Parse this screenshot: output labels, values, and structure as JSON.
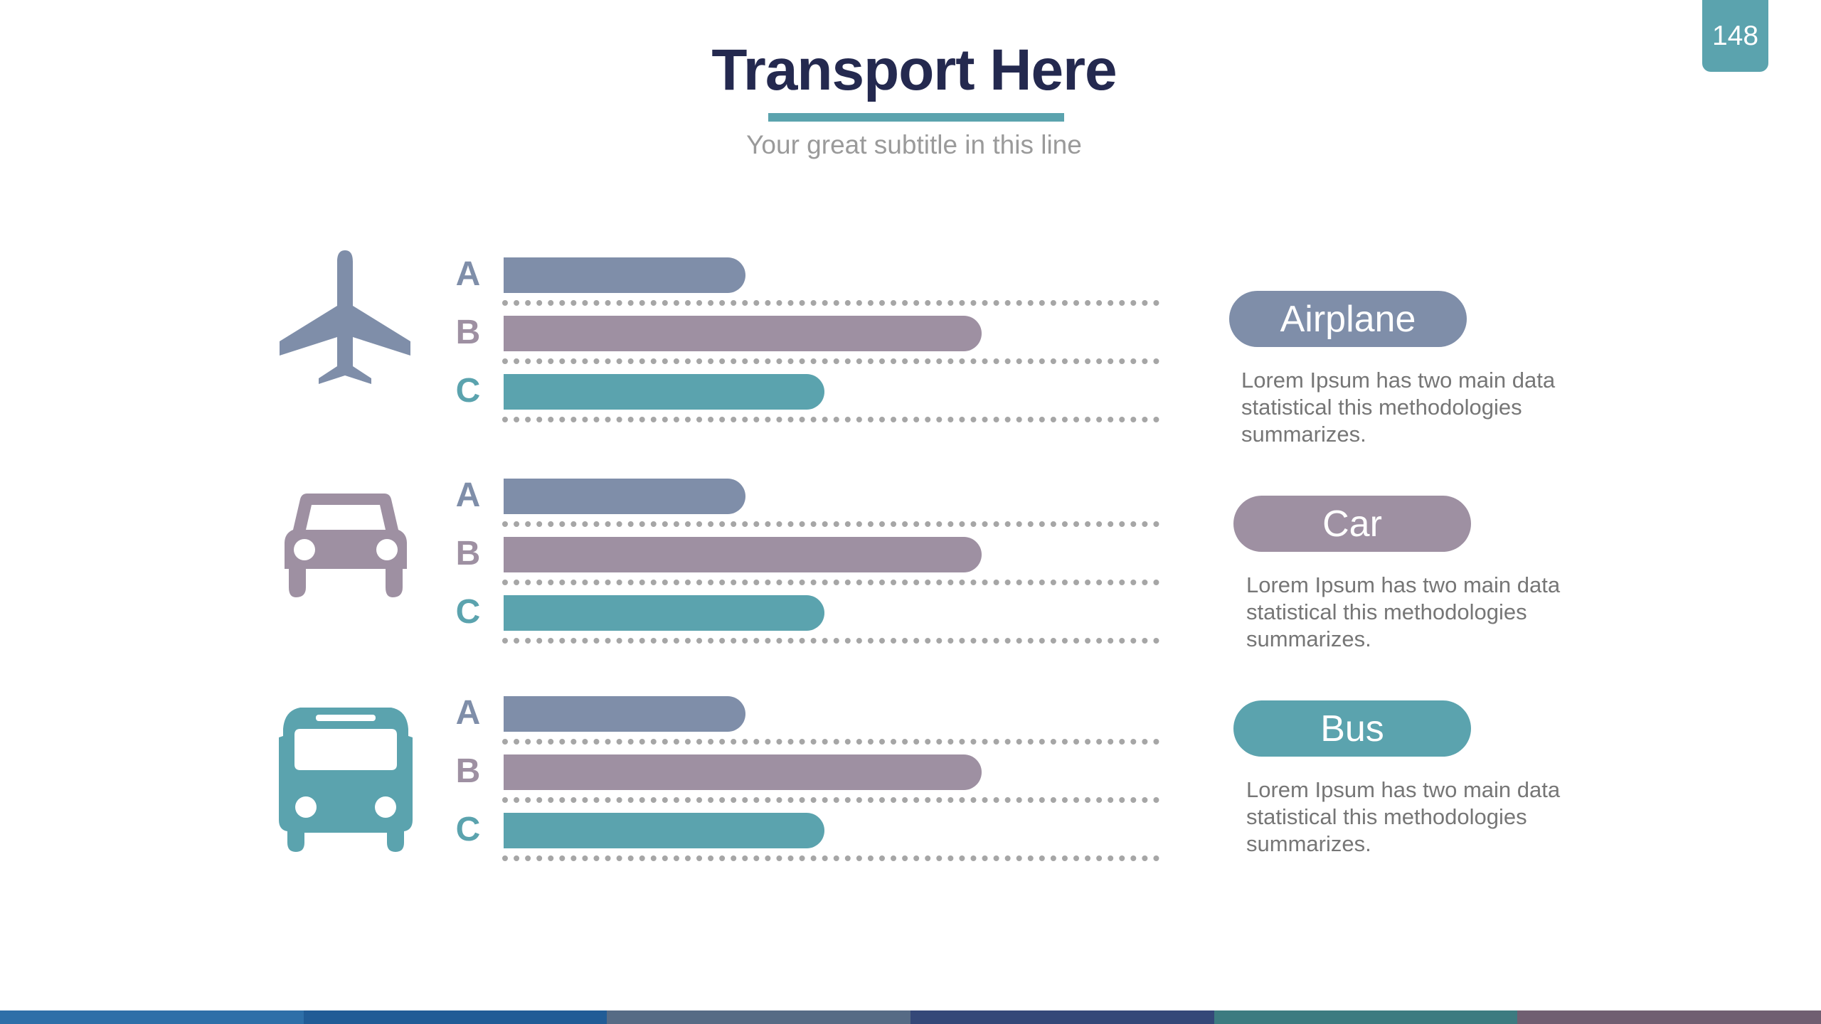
{
  "page_number": "148",
  "title": "Transport Here",
  "subtitle": "Your great subtitle in this line",
  "colors": {
    "accent": "#5ba3ae",
    "title": "#24294f",
    "series_a": "#7f8ea9",
    "series_b": "#9e90a2",
    "series_c": "#5ba3ae",
    "dots": "#a6a6a6",
    "footer": [
      "#2e6fa8",
      "#215c96",
      "#566b85",
      "#344878",
      "#3c7b80",
      "#705e71"
    ]
  },
  "chart_data": {
    "type": "bar",
    "categories": [
      "A",
      "B",
      "C"
    ],
    "groups": [
      {
        "name": "Airplane",
        "icon": "airplane-icon",
        "values": [
          37,
          73,
          49
        ]
      },
      {
        "name": "Car",
        "icon": "car-icon",
        "values": [
          37,
          73,
          49
        ]
      },
      {
        "name": "Bus",
        "icon": "bus-icon",
        "values": [
          37,
          73,
          49
        ]
      }
    ],
    "ylim": [
      0,
      100
    ]
  },
  "legend": [
    {
      "label": "Airplane",
      "text": "Lorem Ipsum has two main data statistical this methodologies summarizes."
    },
    {
      "label": "Car",
      "text": "Lorem Ipsum has two main data statistical this methodologies summarizes."
    },
    {
      "label": "Bus",
      "text": "Lorem Ipsum has two main data statistical this methodologies summarizes."
    }
  ]
}
